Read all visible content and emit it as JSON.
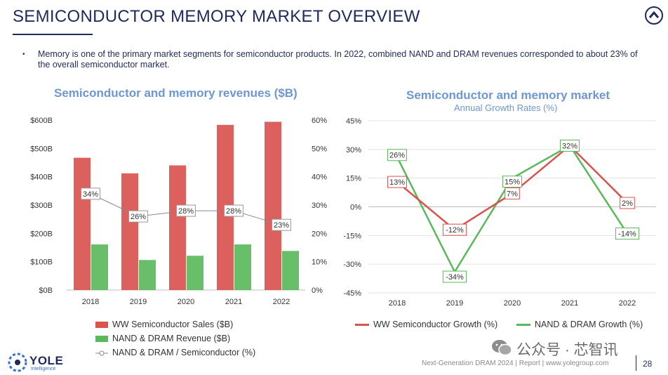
{
  "header": {
    "title": "SEMICONDUCTOR MEMORY MARKET OVERVIEW",
    "bullet": "Memory is one of the primary market segments for semiconductor products. In 2022, combined NAND and DRAM revenues corresponded to about 23% of the overall semiconductor market."
  },
  "chart_data": [
    {
      "type": "bar",
      "title": "Semiconductor and memory revenues ($B)",
      "categories": [
        "2018",
        "2019",
        "2020",
        "2021",
        "2022"
      ],
      "series": [
        {
          "name": "WW Semiconductor Sales ($B)",
          "values": [
            467,
            412,
            440,
            583,
            594
          ],
          "axis": "left",
          "color": "#d9534f"
        },
        {
          "name": "NAND & DRAM Revenue ($B)",
          "values": [
            161,
            106,
            121,
            161,
            138
          ],
          "axis": "left",
          "color": "#5cb85c"
        },
        {
          "name": "NAND & DRAM / Semiconductor (%)",
          "type": "line",
          "axis": "right",
          "values": [
            34,
            26,
            28,
            28,
            23
          ],
          "labels": [
            "34%",
            "26%",
            "28%",
            "28%",
            "23%"
          ],
          "color": "#888888"
        }
      ],
      "y_left": {
        "range": [
          0,
          600
        ],
        "ticks": [
          "$0B",
          "$100B",
          "$200B",
          "$300B",
          "$400B",
          "$500B",
          "$600B"
        ]
      },
      "y_right": {
        "range": [
          0,
          60
        ],
        "ticks": [
          "0%",
          "10%",
          "20%",
          "30%",
          "40%",
          "50%",
          "60%"
        ]
      },
      "legend": [
        "WW Semiconductor Sales ($B)",
        "NAND & DRAM Revenue ($B)",
        "NAND & DRAM / Semiconductor (%)"
      ],
      "legend_position": "bottom"
    },
    {
      "type": "line",
      "title": "Semiconductor and memory market",
      "subtitle": "Annual Growth Rates (%)",
      "categories": [
        "2018",
        "2019",
        "2020",
        "2021",
        "2022"
      ],
      "series": [
        {
          "name": "WW Semiconductor Growth (%)",
          "values": [
            13,
            -12,
            7,
            32,
            2
          ],
          "labels": [
            "13%",
            "-12%",
            "7%",
            "32%",
            "2%"
          ],
          "color": "#d9534f"
        },
        {
          "name": "NAND & DRAM Growth (%)",
          "values": [
            26,
            -34,
            15,
            32,
            -14
          ],
          "labels": [
            "26%",
            "-34%",
            "15%",
            "32%",
            "-14%"
          ],
          "color": "#5cb85c"
        }
      ],
      "y": {
        "range": [
          -45,
          45
        ],
        "ticks": [
          "-45%",
          "-30%",
          "-15%",
          "0%",
          "15%",
          "30%",
          "45%"
        ]
      },
      "grid": true,
      "legend_position": "bottom"
    }
  ],
  "footer": {
    "logo": "YOLE",
    "logo_sub": "Intelligence",
    "report": "Next-Generation DRAM 2024 | Report | www.yolegroup.com",
    "page": "28",
    "watermark": "公众号 · 芯智讯"
  },
  "colors": {
    "navy": "#1f2a5a",
    "title_blue": "#6e96d2",
    "red": "#d9534f",
    "green": "#5cb85c"
  }
}
